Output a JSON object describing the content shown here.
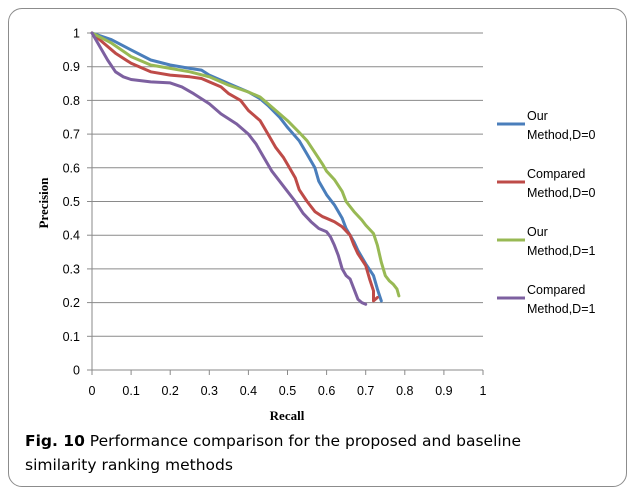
{
  "caption": {
    "label": "Fig. 10",
    "text": "Performance comparison for the proposed and baseline similarity ranking methods"
  },
  "chart_data": {
    "type": "line",
    "title": "",
    "xlabel": "Recall",
    "ylabel": "Precision",
    "xlim": [
      0,
      1
    ],
    "ylim": [
      0,
      1
    ],
    "xticks": [
      "0",
      "0.1",
      "0.2",
      "0.3",
      "0.4",
      "0.5",
      "0.6",
      "0.7",
      "0.8",
      "0.9",
      "1"
    ],
    "yticks": [
      "0",
      "0.1",
      "0.2",
      "0.3",
      "0.4",
      "0.5",
      "0.6",
      "0.7",
      "0.8",
      "0.9",
      "1"
    ],
    "grid": "horizontal",
    "legend_position": "right",
    "series": [
      {
        "name": "Our Method,D=0",
        "legend_lines": [
          "Our",
          "Method,D=0"
        ],
        "color": "#4a7ebb",
        "points": [
          [
            0,
            1
          ],
          [
            0.05,
            0.98
          ],
          [
            0.1,
            0.95
          ],
          [
            0.15,
            0.92
          ],
          [
            0.2,
            0.905
          ],
          [
            0.25,
            0.895
          ],
          [
            0.28,
            0.89
          ],
          [
            0.3,
            0.875
          ],
          [
            0.35,
            0.85
          ],
          [
            0.4,
            0.825
          ],
          [
            0.43,
            0.805
          ],
          [
            0.45,
            0.785
          ],
          [
            0.48,
            0.75
          ],
          [
            0.5,
            0.72
          ],
          [
            0.53,
            0.68
          ],
          [
            0.55,
            0.64
          ],
          [
            0.57,
            0.6
          ],
          [
            0.58,
            0.56
          ],
          [
            0.6,
            0.52
          ],
          [
            0.62,
            0.49
          ],
          [
            0.64,
            0.45
          ],
          [
            0.65,
            0.42
          ],
          [
            0.67,
            0.38
          ],
          [
            0.68,
            0.355
          ],
          [
            0.7,
            0.315
          ],
          [
            0.72,
            0.28
          ],
          [
            0.73,
            0.24
          ],
          [
            0.74,
            0.205
          ]
        ]
      },
      {
        "name": "Compared Method,D=0",
        "legend_lines": [
          "Compared",
          "Method,D=0"
        ],
        "color": "#be4b48",
        "points": [
          [
            0,
            1
          ],
          [
            0.03,
            0.97
          ],
          [
            0.06,
            0.94
          ],
          [
            0.1,
            0.91
          ],
          [
            0.15,
            0.885
          ],
          [
            0.2,
            0.875
          ],
          [
            0.25,
            0.87
          ],
          [
            0.28,
            0.865
          ],
          [
            0.3,
            0.855
          ],
          [
            0.33,
            0.84
          ],
          [
            0.35,
            0.82
          ],
          [
            0.38,
            0.8
          ],
          [
            0.4,
            0.77
          ],
          [
            0.43,
            0.74
          ],
          [
            0.45,
            0.7
          ],
          [
            0.47,
            0.66
          ],
          [
            0.49,
            0.63
          ],
          [
            0.5,
            0.61
          ],
          [
            0.52,
            0.57
          ],
          [
            0.53,
            0.535
          ],
          [
            0.55,
            0.5
          ],
          [
            0.57,
            0.47
          ],
          [
            0.59,
            0.455
          ],
          [
            0.6,
            0.45
          ],
          [
            0.62,
            0.44
          ],
          [
            0.64,
            0.425
          ],
          [
            0.66,
            0.4
          ],
          [
            0.67,
            0.37
          ],
          [
            0.68,
            0.345
          ],
          [
            0.7,
            0.31
          ],
          [
            0.71,
            0.27
          ],
          [
            0.72,
            0.235
          ],
          [
            0.72,
            0.205
          ],
          [
            0.73,
            0.215
          ]
        ]
      },
      {
        "name": "Our Method,D=1",
        "legend_lines": [
          "Our",
          "Method,D=1"
        ],
        "color": "#98b954",
        "points": [
          [
            0,
            1
          ],
          [
            0.05,
            0.97
          ],
          [
            0.1,
            0.93
          ],
          [
            0.15,
            0.905
          ],
          [
            0.2,
            0.895
          ],
          [
            0.25,
            0.885
          ],
          [
            0.3,
            0.87
          ],
          [
            0.35,
            0.845
          ],
          [
            0.4,
            0.825
          ],
          [
            0.43,
            0.81
          ],
          [
            0.45,
            0.79
          ],
          [
            0.48,
            0.76
          ],
          [
            0.5,
            0.74
          ],
          [
            0.53,
            0.705
          ],
          [
            0.55,
            0.68
          ],
          [
            0.57,
            0.645
          ],
          [
            0.59,
            0.61
          ],
          [
            0.6,
            0.59
          ],
          [
            0.62,
            0.565
          ],
          [
            0.64,
            0.53
          ],
          [
            0.65,
            0.5
          ],
          [
            0.67,
            0.47
          ],
          [
            0.69,
            0.445
          ],
          [
            0.7,
            0.43
          ],
          [
            0.72,
            0.405
          ],
          [
            0.73,
            0.37
          ],
          [
            0.74,
            0.32
          ],
          [
            0.75,
            0.28
          ],
          [
            0.76,
            0.265
          ],
          [
            0.77,
            0.255
          ],
          [
            0.78,
            0.24
          ],
          [
            0.785,
            0.22
          ]
        ]
      },
      {
        "name": "Compared Method,D=1",
        "legend_lines": [
          "Compared",
          "Method,D=1"
        ],
        "color": "#7d60a0",
        "points": [
          [
            0,
            1
          ],
          [
            0.02,
            0.96
          ],
          [
            0.04,
            0.92
          ],
          [
            0.06,
            0.885
          ],
          [
            0.08,
            0.87
          ],
          [
            0.1,
            0.862
          ],
          [
            0.15,
            0.855
          ],
          [
            0.2,
            0.852
          ],
          [
            0.23,
            0.84
          ],
          [
            0.26,
            0.82
          ],
          [
            0.3,
            0.79
          ],
          [
            0.33,
            0.76
          ],
          [
            0.37,
            0.73
          ],
          [
            0.4,
            0.7
          ],
          [
            0.42,
            0.67
          ],
          [
            0.44,
            0.63
          ],
          [
            0.46,
            0.59
          ],
          [
            0.48,
            0.56
          ],
          [
            0.5,
            0.53
          ],
          [
            0.52,
            0.5
          ],
          [
            0.54,
            0.465
          ],
          [
            0.56,
            0.44
          ],
          [
            0.58,
            0.42
          ],
          [
            0.6,
            0.41
          ],
          [
            0.61,
            0.395
          ],
          [
            0.62,
            0.37
          ],
          [
            0.63,
            0.34
          ],
          [
            0.64,
            0.3
          ],
          [
            0.65,
            0.28
          ],
          [
            0.66,
            0.27
          ],
          [
            0.67,
            0.24
          ],
          [
            0.68,
            0.21
          ],
          [
            0.69,
            0.2
          ],
          [
            0.7,
            0.195
          ]
        ]
      }
    ]
  }
}
